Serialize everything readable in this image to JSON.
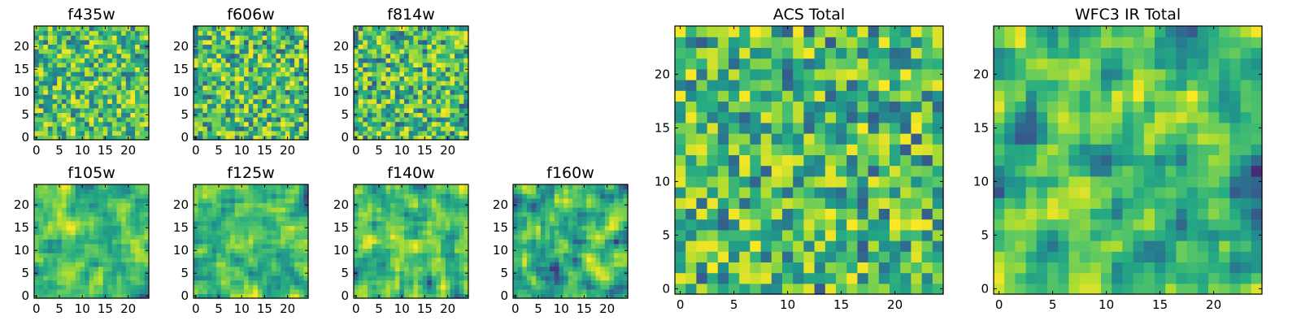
{
  "chart_data": [
    {
      "type": "heatmap",
      "title": "f435w",
      "xlabel": "",
      "ylabel": "",
      "xlim": [
        0,
        24
      ],
      "ylim": [
        0,
        24
      ],
      "grid_size": [
        25,
        25
      ],
      "grid": false,
      "colormap": "viridis",
      "value_range": [
        0,
        1
      ],
      "xticks": [
        0,
        5,
        10,
        15,
        20
      ],
      "yticks": [
        0,
        5,
        10,
        15,
        20
      ],
      "seed": 11,
      "smooth": 0,
      "bias": 0.34
    },
    {
      "type": "heatmap",
      "title": "f606w",
      "xlabel": "",
      "ylabel": "",
      "xlim": [
        0,
        24
      ],
      "ylim": [
        0,
        24
      ],
      "grid_size": [
        25,
        25
      ],
      "grid": false,
      "colormap": "viridis",
      "value_range": [
        0,
        1
      ],
      "xticks": [
        0,
        5,
        10,
        15,
        20
      ],
      "yticks": [
        0,
        5,
        10,
        15,
        20
      ],
      "seed": 23,
      "smooth": 0,
      "bias": 0.3
    },
    {
      "type": "heatmap",
      "title": "f814w",
      "xlabel": "",
      "ylabel": "",
      "xlim": [
        0,
        24
      ],
      "ylim": [
        0,
        24
      ],
      "grid_size": [
        25,
        25
      ],
      "grid": false,
      "colormap": "viridis",
      "value_range": [
        0,
        1
      ],
      "xticks": [
        0,
        5,
        10,
        15,
        20
      ],
      "yticks": [
        0,
        5,
        10,
        15,
        20
      ],
      "seed": 37,
      "smooth": 0,
      "bias": 0.28
    },
    {
      "type": "heatmap",
      "title": "f105w",
      "xlabel": "",
      "ylabel": "",
      "xlim": [
        0,
        24
      ],
      "ylim": [
        0,
        24
      ],
      "grid_size": [
        25,
        25
      ],
      "grid": false,
      "colormap": "viridis",
      "value_range": [
        0,
        1
      ],
      "xticks": [
        0,
        5,
        10,
        15,
        20
      ],
      "yticks": [
        0,
        5,
        10,
        15,
        20
      ],
      "seed": 41,
      "smooth": 1,
      "bias": 0.25
    },
    {
      "type": "heatmap",
      "title": "f125w",
      "xlabel": "",
      "ylabel": "",
      "xlim": [
        0,
        24
      ],
      "ylim": [
        0,
        24
      ],
      "grid_size": [
        25,
        25
      ],
      "grid": false,
      "colormap": "viridis",
      "value_range": [
        0,
        1
      ],
      "xticks": [
        0,
        5,
        10,
        15,
        20
      ],
      "yticks": [
        0,
        5,
        10,
        15,
        20
      ],
      "seed": 53,
      "smooth": 1,
      "bias": 0.22
    },
    {
      "type": "heatmap",
      "title": "f140w",
      "xlabel": "",
      "ylabel": "",
      "xlim": [
        0,
        24
      ],
      "ylim": [
        0,
        24
      ],
      "grid_size": [
        25,
        25
      ],
      "grid": false,
      "colormap": "viridis",
      "value_range": [
        0,
        1
      ],
      "xticks": [
        0,
        5,
        10,
        15,
        20
      ],
      "yticks": [
        0,
        5,
        10,
        15,
        20
      ],
      "seed": 67,
      "smooth": 1,
      "bias": 0.2
    },
    {
      "type": "heatmap",
      "title": "f160w",
      "xlabel": "",
      "ylabel": "",
      "xlim": [
        0,
        24
      ],
      "ylim": [
        0,
        24
      ],
      "grid_size": [
        25,
        25
      ],
      "grid": false,
      "colormap": "viridis",
      "value_range": [
        0,
        1
      ],
      "xticks": [
        0,
        5,
        10,
        15,
        20
      ],
      "yticks": [
        0,
        5,
        10,
        15,
        20
      ],
      "seed": 79,
      "smooth": 1,
      "bias": 0.15
    },
    {
      "type": "heatmap",
      "title": "ACS Total",
      "xlabel": "",
      "ylabel": "",
      "xlim": [
        0,
        24
      ],
      "ylim": [
        0,
        24
      ],
      "grid_size": [
        25,
        25
      ],
      "grid": false,
      "colormap": "viridis",
      "value_range": [
        0,
        1
      ],
      "xticks": [
        0,
        5,
        10,
        15,
        20
      ],
      "yticks": [
        0,
        5,
        10,
        15,
        20
      ],
      "seed": 97,
      "smooth": 0,
      "bias": 0.28
    },
    {
      "type": "heatmap",
      "title": "WFC3 IR Total",
      "xlabel": "",
      "ylabel": "",
      "xlim": [
        0,
        24
      ],
      "ylim": [
        0,
        24
      ],
      "grid_size": [
        25,
        25
      ],
      "grid": false,
      "colormap": "viridis",
      "value_range": [
        0,
        1
      ],
      "xticks": [
        0,
        5,
        10,
        15,
        20
      ],
      "yticks": [
        0,
        5,
        10,
        15,
        20
      ],
      "seed": 113,
      "smooth": 1,
      "bias": 0.12
    }
  ]
}
